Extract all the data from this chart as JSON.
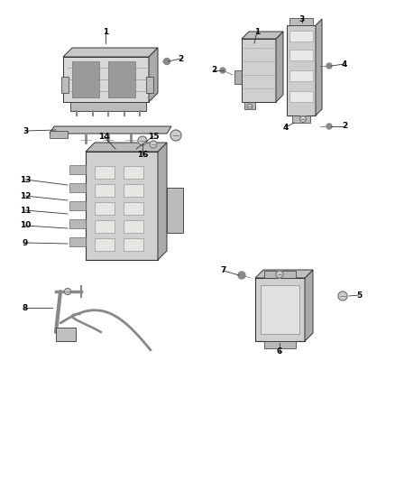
{
  "bg_color": "#ffffff",
  "fig_width": 4.38,
  "fig_height": 5.33,
  "dpi": 100,
  "text_color": "#000000",
  "label_fontsize": 6.5,
  "label_fontweight": "bold",
  "line_color": "#444444",
  "gray1": "#b8b8b8",
  "gray2": "#d0d0d0",
  "gray3": "#e8e8e8",
  "gray_dark": "#888888",
  "gray_edge": "#333333"
}
